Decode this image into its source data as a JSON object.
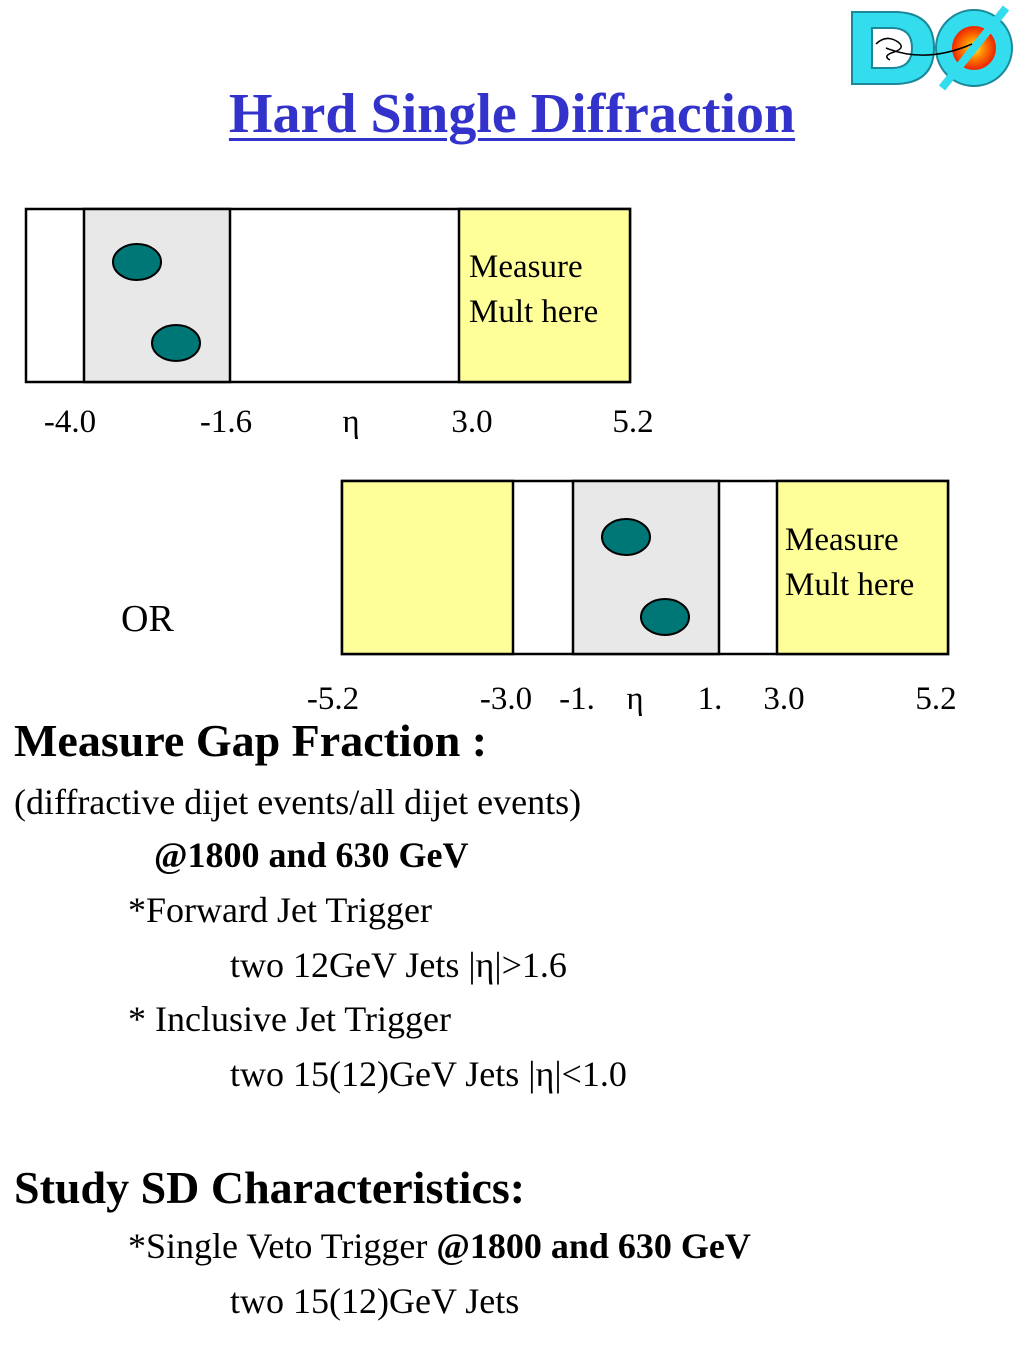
{
  "title": "Hard Single Diffraction",
  "logo": {
    "icon": "dzero-logo-icon",
    "colors": {
      "cyan": "#33ddee",
      "flare": "#ff6600",
      "core": "#ffee33"
    }
  },
  "diagram1": {
    "label_line1": "Measure",
    "label_line2": "Mult here",
    "ticks": [
      "-4.0",
      "-1.6",
      "η",
      "3.0",
      "5.2"
    ]
  },
  "or_label": "OR",
  "diagram2": {
    "label_line1": "Measure",
    "label_line2": "Mult here",
    "ticks": [
      "-5.2",
      "-3.0",
      "-1.",
      "η",
      "1.",
      "3.0",
      "5.2"
    ]
  },
  "colors": {
    "yellow": "#ffff99",
    "gray": "#e8e8e8",
    "jet": "#007777",
    "title": "#3333cc"
  },
  "section1": {
    "heading": "Measure Gap Fraction :",
    "subtitle": "(diffractive dijet events/all dijet events)",
    "energies": "@1800 and 630 GeV",
    "trigger1": "*Forward Jet Trigger",
    "trigger1_detail": "two 12GeV Jets |η|>1.6",
    "trigger2": "* Inclusive Jet Trigger",
    "trigger2_detail": "two 15(12)GeV Jets |η|<1.0"
  },
  "section2": {
    "heading": "Study SD Characteristics:",
    "trigger_prefix": "*Single Veto Trigger ",
    "trigger_energies": "@1800 and 630 GeV",
    "trigger_detail": "two 15(12)GeV Jets"
  }
}
